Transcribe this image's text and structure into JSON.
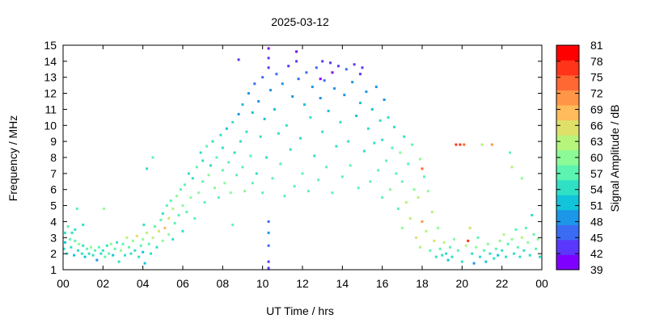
{
  "chart_data": {
    "type": "heatmap",
    "title": "2025-03-12",
    "xlabel": "UT Time / hrs",
    "ylabel": "Frequency / MHz",
    "colorbar_label": "Signal Amplitude / dB",
    "xlim": [
      0,
      24
    ],
    "ylim": [
      1,
      15
    ],
    "x_ticks": [
      "00",
      "02",
      "04",
      "06",
      "08",
      "10",
      "12",
      "14",
      "16",
      "18",
      "20",
      "22",
      "00"
    ],
    "y_ticks": [
      "1",
      "2",
      "3",
      "4",
      "5",
      "6",
      "7",
      "8",
      "9",
      "10",
      "11",
      "12",
      "13",
      "14",
      "15"
    ],
    "colorbar_ticks": [
      "39",
      "42",
      "45",
      "48",
      "51",
      "54",
      "57",
      "60",
      "63",
      "66",
      "69",
      "72",
      "75",
      "78",
      "81"
    ],
    "colorbar_colors": [
      "#8000ff",
      "#5a37fb",
      "#3a6cf3",
      "#1c96e8",
      "#12c4d9",
      "#30e0c5",
      "#5cf4b0",
      "#8bfb96",
      "#b6f47b",
      "#dee06a",
      "#ffbb5c",
      "#ff9547",
      "#ff6733",
      "#ff3418",
      "#ff0000"
    ],
    "grid": false,
    "points": [
      [
        0.05,
        2.3,
        54
      ],
      [
        0.1,
        2.7,
        52
      ],
      [
        0.1,
        3.3,
        55
      ],
      [
        0.2,
        2.0,
        54
      ],
      [
        0.25,
        3.7,
        56
      ],
      [
        0.35,
        2.9,
        57
      ],
      [
        0.4,
        2.4,
        55
      ],
      [
        0.45,
        3.3,
        53
      ],
      [
        0.55,
        1.9,
        52
      ],
      [
        0.6,
        2.8,
        57
      ],
      [
        0.6,
        3.5,
        54
      ],
      [
        0.75,
        2.2,
        55
      ],
      [
        0.8,
        2.6,
        60
      ],
      [
        0.95,
        2.0,
        53
      ],
      [
        1.0,
        2.5,
        55
      ],
      [
        1.1,
        1.8,
        51
      ],
      [
        1.2,
        2.3,
        57
      ],
      [
        1.3,
        2.0,
        54
      ],
      [
        1.4,
        2.4,
        59
      ],
      [
        1.5,
        1.9,
        53
      ],
      [
        1.6,
        2.2,
        56
      ],
      [
        1.7,
        1.6,
        50
      ],
      [
        1.8,
        2.4,
        58
      ],
      [
        1.9,
        2.0,
        54
      ],
      [
        2.0,
        2.2,
        55
      ],
      [
        2.1,
        1.8,
        57
      ],
      [
        2.2,
        2.5,
        53
      ],
      [
        2.3,
        2.0,
        56
      ],
      [
        2.4,
        2.6,
        60
      ],
      [
        2.5,
        1.9,
        52
      ],
      [
        2.6,
        2.3,
        57
      ],
      [
        2.7,
        2.7,
        55
      ],
      [
        2.8,
        1.5,
        54
      ],
      [
        2.9,
        2.2,
        59
      ],
      [
        3.0,
        2.6,
        56
      ],
      [
        3.1,
        1.9,
        53
      ],
      [
        3.2,
        3.0,
        63
      ],
      [
        3.3,
        2.4,
        57
      ],
      [
        3.4,
        2.0,
        54
      ],
      [
        3.5,
        2.8,
        61
      ],
      [
        3.6,
        2.2,
        55
      ],
      [
        3.7,
        3.1,
        66
      ],
      [
        3.8,
        1.8,
        53
      ],
      [
        3.9,
        2.5,
        58
      ],
      [
        4.0,
        2.1,
        52
      ],
      [
        4.0,
        2.9,
        60
      ],
      [
        4.1,
        1.4,
        51
      ],
      [
        4.2,
        3.3,
        63
      ],
      [
        4.3,
        2.6,
        56
      ],
      [
        4.4,
        2.0,
        54
      ],
      [
        4.5,
        3.0,
        62
      ],
      [
        4.6,
        3.7,
        58
      ],
      [
        4.7,
        2.4,
        55
      ],
      [
        4.8,
        3.4,
        66
      ],
      [
        4.9,
        4.1,
        57
      ],
      [
        5.0,
        2.8,
        61
      ],
      [
        5.0,
        4.5,
        55
      ],
      [
        5.1,
        3.6,
        69
      ],
      [
        5.2,
        5.0,
        56
      ],
      [
        5.3,
        3.2,
        60
      ],
      [
        5.3,
        4.2,
        66
      ],
      [
        5.4,
        5.3,
        58
      ],
      [
        5.5,
        2.9,
        55
      ],
      [
        5.5,
        4.8,
        63
      ],
      [
        5.6,
        3.9,
        57
      ],
      [
        5.7,
        5.6,
        60
      ],
      [
        5.8,
        4.4,
        56
      ],
      [
        5.9,
        6.0,
        58
      ],
      [
        6.0,
        3.4,
        53
      ],
      [
        6.0,
        5.0,
        61
      ],
      [
        6.1,
        6.3,
        56
      ],
      [
        6.2,
        4.6,
        57
      ],
      [
        6.3,
        7.0,
        55
      ],
      [
        6.4,
        5.5,
        59
      ],
      [
        6.5,
        6.7,
        54
      ],
      [
        6.6,
        4.2,
        56
      ],
      [
        6.7,
        7.4,
        57
      ],
      [
        6.8,
        5.8,
        60
      ],
      [
        6.9,
        8.3,
        55
      ],
      [
        7.0,
        6.5,
        58
      ],
      [
        7.0,
        7.8,
        54
      ],
      [
        7.1,
        5.2,
        56
      ],
      [
        7.2,
        8.7,
        57
      ],
      [
        7.3,
        6.9,
        59
      ],
      [
        7.4,
        7.5,
        55
      ],
      [
        7.5,
        9.0,
        54
      ],
      [
        7.6,
        6.1,
        60
      ],
      [
        7.7,
        8.0,
        56
      ],
      [
        7.8,
        5.5,
        58
      ],
      [
        7.9,
        9.4,
        55
      ],
      [
        8.0,
        7.2,
        57
      ],
      [
        8.0,
        8.6,
        54
      ],
      [
        8.1,
        6.4,
        59
      ],
      [
        8.2,
        9.8,
        52
      ],
      [
        8.3,
        7.7,
        56
      ],
      [
        8.4,
        5.8,
        60
      ],
      [
        8.5,
        10.2,
        53
      ],
      [
        8.6,
        8.3,
        55
      ],
      [
        8.7,
        6.9,
        58
      ],
      [
        8.8,
        10.7,
        50
      ],
      [
        8.8,
        14.1,
        42
      ],
      [
        8.9,
        9.0,
        54
      ],
      [
        9.0,
        7.4,
        57
      ],
      [
        9.0,
        11.3,
        51
      ],
      [
        9.1,
        5.9,
        60
      ],
      [
        9.2,
        9.6,
        55
      ],
      [
        9.3,
        12.0,
        48
      ],
      [
        9.4,
        8.1,
        56
      ],
      [
        9.5,
        6.4,
        58
      ],
      [
        9.5,
        10.8,
        52
      ],
      [
        9.6,
        12.6,
        47
      ],
      [
        9.7,
        7.0,
        55
      ],
      [
        9.8,
        11.5,
        50
      ],
      [
        9.9,
        9.3,
        54
      ],
      [
        10.0,
        13.0,
        47
      ],
      [
        10.0,
        5.8,
        57
      ],
      [
        10.1,
        10.4,
        52
      ],
      [
        10.2,
        8.0,
        55
      ],
      [
        10.3,
        14.8,
        40
      ],
      [
        10.3,
        14.2,
        42
      ],
      [
        10.3,
        13.6,
        44
      ],
      [
        10.3,
        4.0,
        46
      ],
      [
        10.3,
        3.3,
        48
      ],
      [
        10.3,
        2.5,
        47
      ],
      [
        10.3,
        1.5,
        44
      ],
      [
        10.3,
        1.1,
        42
      ],
      [
        10.4,
        12.2,
        49
      ],
      [
        10.5,
        6.7,
        56
      ],
      [
        10.6,
        11.0,
        51
      ],
      [
        10.7,
        13.2,
        46
      ],
      [
        10.8,
        9.5,
        54
      ],
      [
        10.9,
        7.6,
        57
      ],
      [
        11.0,
        12.6,
        48
      ],
      [
        11.1,
        5.6,
        58
      ],
      [
        11.2,
        10.0,
        53
      ],
      [
        11.3,
        13.7,
        43
      ],
      [
        11.4,
        8.5,
        55
      ],
      [
        11.5,
        11.8,
        50
      ],
      [
        11.6,
        6.2,
        56
      ],
      [
        11.7,
        14.6,
        40
      ],
      [
        11.7,
        14.0,
        42
      ],
      [
        11.8,
        12.9,
        47
      ],
      [
        11.9,
        9.2,
        54
      ],
      [
        12.0,
        7.0,
        57
      ],
      [
        12.1,
        11.3,
        52
      ],
      [
        12.2,
        13.3,
        46
      ],
      [
        12.3,
        5.9,
        58
      ],
      [
        12.4,
        10.5,
        53
      ],
      [
        12.5,
        12.4,
        48
      ],
      [
        12.6,
        8.1,
        55
      ],
      [
        12.7,
        13.6,
        45
      ],
      [
        12.8,
        6.6,
        57
      ],
      [
        12.9,
        11.7,
        50
      ],
      [
        13.0,
        9.6,
        54
      ],
      [
        13.0,
        14.0,
        42
      ],
      [
        13.1,
        12.8,
        47
      ],
      [
        13.2,
        7.4,
        56
      ],
      [
        13.3,
        10.9,
        52
      ],
      [
        13.4,
        13.9,
        43
      ],
      [
        13.5,
        5.8,
        58
      ],
      [
        13.6,
        12.3,
        49
      ],
      [
        13.7,
        8.7,
        55
      ],
      [
        13.8,
        13.7,
        44
      ],
      [
        13.9,
        10.2,
        53
      ],
      [
        14.0,
        6.8,
        57
      ],
      [
        14.1,
        11.9,
        50
      ],
      [
        14.2,
        13.5,
        46
      ],
      [
        14.3,
        9.0,
        54
      ],
      [
        14.4,
        7.5,
        56
      ],
      [
        14.5,
        12.7,
        48
      ],
      [
        14.6,
        13.8,
        42
      ],
      [
        14.7,
        10.6,
        52
      ],
      [
        14.8,
        6.1,
        58
      ],
      [
        14.9,
        11.4,
        51
      ],
      [
        15.0,
        13.6,
        44
      ],
      [
        15.1,
        8.4,
        55
      ],
      [
        15.2,
        12.1,
        49
      ],
      [
        15.3,
        9.8,
        54
      ],
      [
        15.4,
        6.5,
        57
      ],
      [
        15.5,
        11.0,
        52
      ],
      [
        15.6,
        8.9,
        55
      ],
      [
        15.7,
        12.4,
        48
      ],
      [
        15.8,
        7.2,
        57
      ],
      [
        15.9,
        10.3,
        53
      ],
      [
        16.0,
        5.5,
        58
      ],
      [
        16.0,
        9.1,
        55
      ],
      [
        16.1,
        11.6,
        50
      ],
      [
        16.2,
        7.8,
        56
      ],
      [
        16.3,
        10.5,
        53
      ],
      [
        16.4,
        6.0,
        59
      ],
      [
        16.5,
        8.6,
        56
      ],
      [
        16.6,
        9.9,
        54
      ],
      [
        16.7,
        7.0,
        58
      ],
      [
        16.8,
        4.8,
        57
      ],
      [
        16.9,
        8.3,
        60
      ],
      [
        17.0,
        6.5,
        57
      ],
      [
        17.0,
        3.6,
        60
      ],
      [
        17.1,
        9.3,
        55
      ],
      [
        17.2,
        5.2,
        62
      ],
      [
        17.3,
        7.6,
        58
      ],
      [
        17.4,
        4.2,
        64
      ],
      [
        17.5,
        8.8,
        57
      ],
      [
        17.6,
        6.0,
        59
      ],
      [
        17.7,
        3.0,
        66
      ],
      [
        17.8,
        5.5,
        63
      ],
      [
        17.9,
        7.9,
        60
      ],
      [
        17.9,
        2.4,
        62
      ],
      [
        18.0,
        7.3,
        75
      ],
      [
        18.0,
        4.0,
        70
      ],
      [
        18.1,
        6.8,
        58
      ],
      [
        18.2,
        3.4,
        63
      ],
      [
        18.3,
        5.9,
        60
      ],
      [
        18.4,
        2.2,
        56
      ],
      [
        18.5,
        4.6,
        62
      ],
      [
        18.6,
        2.8,
        66
      ],
      [
        18.7,
        1.8,
        54
      ],
      [
        18.8,
        3.6,
        60
      ],
      [
        18.9,
        2.3,
        57
      ],
      [
        19.0,
        1.9,
        53
      ],
      [
        19.1,
        2.7,
        63
      ],
      [
        19.2,
        2.0,
        55
      ],
      [
        19.3,
        1.6,
        52
      ],
      [
        19.4,
        2.4,
        58
      ],
      [
        19.5,
        1.8,
        54
      ],
      [
        19.6,
        2.9,
        60
      ],
      [
        19.7,
        8.8,
        78
      ],
      [
        19.8,
        2.2,
        56
      ],
      [
        19.9,
        8.8,
        76
      ],
      [
        20.0,
        1.5,
        53
      ],
      [
        20.1,
        8.8,
        74
      ],
      [
        20.2,
        2.5,
        63
      ],
      [
        20.3,
        2.8,
        78
      ],
      [
        20.4,
        3.6,
        66
      ],
      [
        20.5,
        2.0,
        55
      ],
      [
        20.6,
        1.4,
        50
      ],
      [
        20.7,
        2.4,
        60
      ],
      [
        20.8,
        3.0,
        58
      ],
      [
        20.9,
        1.8,
        54
      ],
      [
        21.0,
        8.8,
        63
      ],
      [
        21.1,
        2.2,
        57
      ],
      [
        21.2,
        1.5,
        51
      ],
      [
        21.3,
        2.6,
        59
      ],
      [
        21.4,
        2.0,
        54
      ],
      [
        21.5,
        8.8,
        72
      ],
      [
        21.6,
        1.7,
        53
      ],
      [
        21.7,
        2.3,
        56
      ],
      [
        21.8,
        1.9,
        52
      ],
      [
        21.9,
        2.8,
        60
      ],
      [
        22.0,
        2.2,
        55
      ],
      [
        22.1,
        3.2,
        62
      ],
      [
        22.2,
        1.8,
        53
      ],
      [
        22.3,
        2.6,
        57
      ],
      [
        22.4,
        8.3,
        57
      ],
      [
        22.5,
        7.4,
        63
      ],
      [
        22.5,
        2.9,
        60
      ],
      [
        22.6,
        2.0,
        54
      ],
      [
        22.7,
        3.5,
        58
      ],
      [
        22.8,
        2.4,
        56
      ],
      [
        22.9,
        1.8,
        53
      ],
      [
        23.0,
        6.7,
        61
      ],
      [
        23.0,
        3.0,
        62
      ],
      [
        23.1,
        2.2,
        55
      ],
      [
        23.2,
        3.6,
        57
      ],
      [
        23.3,
        2.7,
        60
      ],
      [
        23.4,
        1.9,
        53
      ],
      [
        23.5,
        4.4,
        54
      ],
      [
        23.6,
        3.2,
        58
      ],
      [
        23.7,
        2.3,
        56
      ],
      [
        23.8,
        2.9,
        60
      ],
      [
        23.9,
        1.8,
        54
      ],
      [
        0.7,
        4.8,
        58
      ],
      [
        1.0,
        3.8,
        55
      ],
      [
        2.05,
        4.8,
        60
      ],
      [
        4.05,
        3.8,
        55
      ],
      [
        4.2,
        7.3,
        54
      ],
      [
        4.5,
        8.0,
        56
      ],
      [
        8.5,
        3.8,
        56
      ],
      [
        12.9,
        12.9,
        38
      ],
      [
        13.5,
        13.3,
        40
      ],
      [
        14.9,
        13.2,
        42
      ]
    ]
  }
}
